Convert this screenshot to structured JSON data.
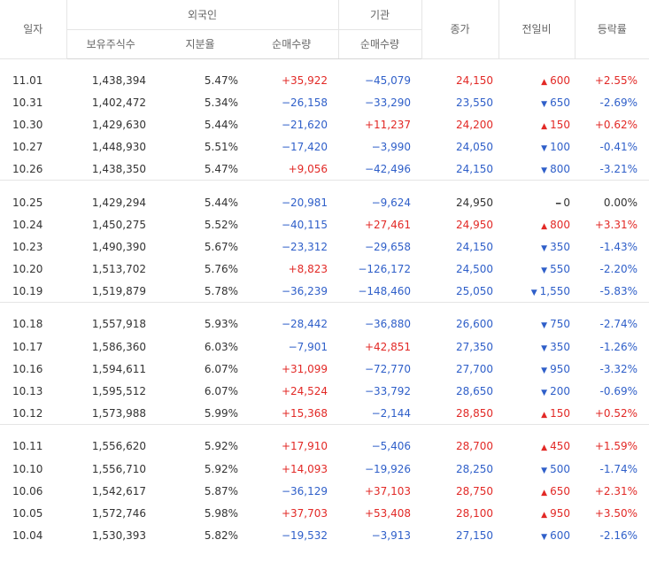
{
  "headers": {
    "date": "일자",
    "foreign": "외국인",
    "institution": "기관",
    "close": "종가",
    "change": "전일비",
    "rate": "등락률",
    "holdings": "보유주식수",
    "ratio": "지분율",
    "foreign_net": "순매수량",
    "inst_net": "순매수량"
  },
  "colors": {
    "up": "#e22926",
    "down": "#2f5fc9"
  },
  "groups": [
    [
      {
        "date": "11.01",
        "holdings": "1,438,394",
        "ratio": "5.47%",
        "foreign_net": "+35,922",
        "inst_net": "−45,079",
        "close": "24,150",
        "dir": "up",
        "change": "600",
        "rate": "+2.55%"
      },
      {
        "date": "10.31",
        "holdings": "1,402,472",
        "ratio": "5.34%",
        "foreign_net": "−26,158",
        "inst_net": "−33,290",
        "close": "23,550",
        "dir": "down",
        "change": "650",
        "rate": "-2.69%"
      },
      {
        "date": "10.30",
        "holdings": "1,429,630",
        "ratio": "5.44%",
        "foreign_net": "−21,620",
        "inst_net": "+11,237",
        "close": "24,200",
        "dir": "up",
        "change": "150",
        "rate": "+0.62%"
      },
      {
        "date": "10.27",
        "holdings": "1,448,930",
        "ratio": "5.51%",
        "foreign_net": "−17,420",
        "inst_net": "−3,990",
        "close": "24,050",
        "dir": "down",
        "change": "100",
        "rate": "-0.41%"
      },
      {
        "date": "10.26",
        "holdings": "1,438,350",
        "ratio": "5.47%",
        "foreign_net": "+9,056",
        "inst_net": "−42,496",
        "close": "24,150",
        "dir": "down",
        "change": "800",
        "rate": "-3.21%"
      }
    ],
    [
      {
        "date": "10.25",
        "holdings": "1,429,294",
        "ratio": "5.44%",
        "foreign_net": "−20,981",
        "inst_net": "−9,624",
        "close": "24,950",
        "dir": "flat",
        "change": "0",
        "rate": "0.00%"
      },
      {
        "date": "10.24",
        "holdings": "1,450,275",
        "ratio": "5.52%",
        "foreign_net": "−40,115",
        "inst_net": "+27,461",
        "close": "24,950",
        "dir": "up",
        "change": "800",
        "rate": "+3.31%"
      },
      {
        "date": "10.23",
        "holdings": "1,490,390",
        "ratio": "5.67%",
        "foreign_net": "−23,312",
        "inst_net": "−29,658",
        "close": "24,150",
        "dir": "down",
        "change": "350",
        "rate": "-1.43%"
      },
      {
        "date": "10.20",
        "holdings": "1,513,702",
        "ratio": "5.76%",
        "foreign_net": "+8,823",
        "inst_net": "−126,172",
        "close": "24,500",
        "dir": "down",
        "change": "550",
        "rate": "-2.20%"
      },
      {
        "date": "10.19",
        "holdings": "1,519,879",
        "ratio": "5.78%",
        "foreign_net": "−36,239",
        "inst_net": "−148,460",
        "close": "25,050",
        "dir": "down",
        "change": "1,550",
        "rate": "-5.83%"
      }
    ],
    [
      {
        "date": "10.18",
        "holdings": "1,557,918",
        "ratio": "5.93%",
        "foreign_net": "−28,442",
        "inst_net": "−36,880",
        "close": "26,600",
        "dir": "down",
        "change": "750",
        "rate": "-2.74%"
      },
      {
        "date": "10.17",
        "holdings": "1,586,360",
        "ratio": "6.03%",
        "foreign_net": "−7,901",
        "inst_net": "+42,851",
        "close": "27,350",
        "dir": "down",
        "change": "350",
        "rate": "-1.26%"
      },
      {
        "date": "10.16",
        "holdings": "1,594,611",
        "ratio": "6.07%",
        "foreign_net": "+31,099",
        "inst_net": "−72,770",
        "close": "27,700",
        "dir": "down",
        "change": "950",
        "rate": "-3.32%"
      },
      {
        "date": "10.13",
        "holdings": "1,595,512",
        "ratio": "6.07%",
        "foreign_net": "+24,524",
        "inst_net": "−33,792",
        "close": "28,650",
        "dir": "down",
        "change": "200",
        "rate": "-0.69%"
      },
      {
        "date": "10.12",
        "holdings": "1,573,988",
        "ratio": "5.99%",
        "foreign_net": "+15,368",
        "inst_net": "−2,144",
        "close": "28,850",
        "dir": "up",
        "change": "150",
        "rate": "+0.52%"
      }
    ],
    [
      {
        "date": "10.11",
        "holdings": "1,556,620",
        "ratio": "5.92%",
        "foreign_net": "+17,910",
        "inst_net": "−5,406",
        "close": "28,700",
        "dir": "up",
        "change": "450",
        "rate": "+1.59%"
      },
      {
        "date": "10.10",
        "holdings": "1,556,710",
        "ratio": "5.92%",
        "foreign_net": "+14,093",
        "inst_net": "−19,926",
        "close": "28,250",
        "dir": "down",
        "change": "500",
        "rate": "-1.74%"
      },
      {
        "date": "10.06",
        "holdings": "1,542,617",
        "ratio": "5.87%",
        "foreign_net": "−36,129",
        "inst_net": "+37,103",
        "close": "28,750",
        "dir": "up",
        "change": "650",
        "rate": "+2.31%"
      },
      {
        "date": "10.05",
        "holdings": "1,572,746",
        "ratio": "5.98%",
        "foreign_net": "+37,703",
        "inst_net": "+53,408",
        "close": "28,100",
        "dir": "up",
        "change": "950",
        "rate": "+3.50%"
      },
      {
        "date": "10.04",
        "holdings": "1,530,393",
        "ratio": "5.82%",
        "foreign_net": "−19,532",
        "inst_net": "−3,913",
        "close": "27,150",
        "dir": "down",
        "change": "600",
        "rate": "-2.16%"
      }
    ]
  ]
}
